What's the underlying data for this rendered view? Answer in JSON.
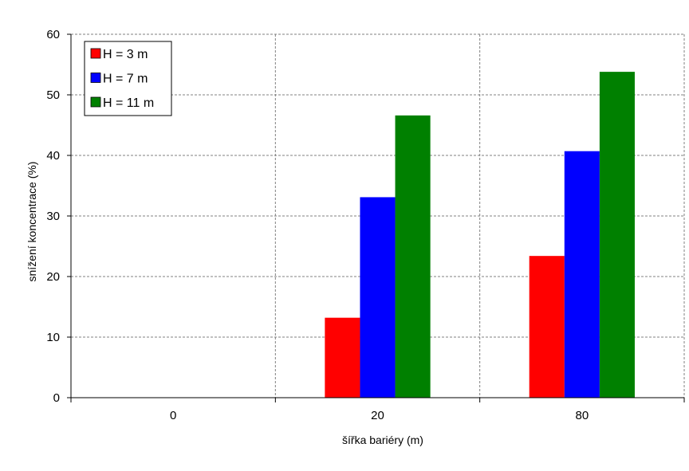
{
  "chart_data": {
    "type": "bar",
    "title": "",
    "xlabel": "šířka bariéry (m)",
    "ylabel": "snížení koncentrace (%)",
    "categories": [
      "0",
      "20",
      "80"
    ],
    "ylim": [
      0,
      60
    ],
    "yticks": [
      0,
      10,
      20,
      30,
      40,
      50,
      60
    ],
    "grid": "dashed, both axes",
    "legend_position": "top-left",
    "series": [
      {
        "name": "H = 3 m",
        "color": "#ff0000",
        "values": [
          0,
          13.2,
          23.4
        ]
      },
      {
        "name": "H = 7 m",
        "color": "#0000ff",
        "values": [
          0,
          33.1,
          40.7
        ]
      },
      {
        "name": "H = 11 m",
        "color": "#008000",
        "values": [
          0,
          46.6,
          53.8
        ]
      }
    ]
  }
}
